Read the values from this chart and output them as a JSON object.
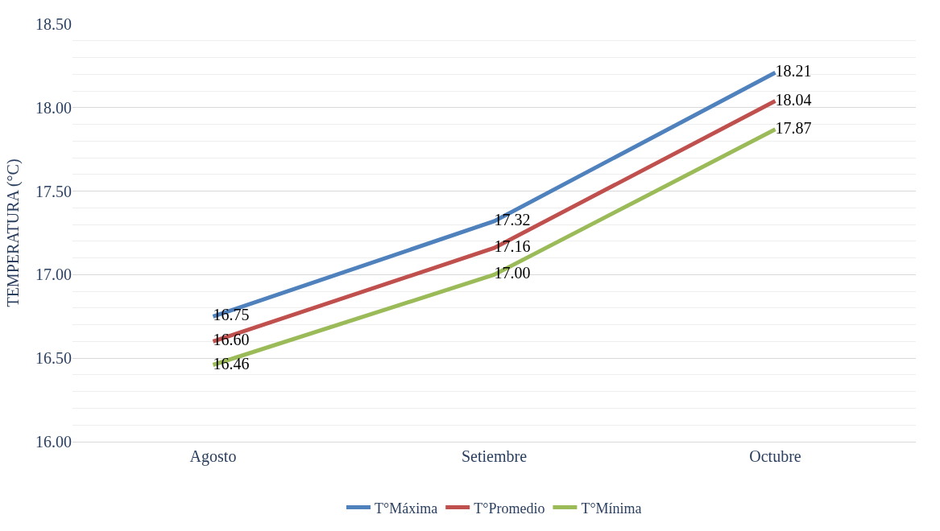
{
  "chart_data": {
    "type": "line",
    "ylabel": "TEMPERATURA (°C)",
    "categories": [
      "Agosto",
      "Setiembre",
      "Octubre"
    ],
    "series": [
      {
        "name": "T°Máxima",
        "color": "#4f81bd",
        "values": [
          16.75,
          17.32,
          18.21
        ],
        "value_labels": [
          "16.75",
          "17.32",
          "18.21"
        ]
      },
      {
        "name": "T°Promedio",
        "color": "#c0504d",
        "values": [
          16.6,
          17.16,
          18.04
        ],
        "value_labels": [
          "16.60",
          "17.16",
          "18.04"
        ]
      },
      {
        "name": "T°Mínima",
        "color": "#9bbb59",
        "values": [
          16.46,
          17.0,
          17.87
        ],
        "value_labels": [
          "16.46",
          "17.00",
          "17.87"
        ]
      }
    ],
    "ylim": [
      16,
      18.5
    ],
    "yticks": [
      {
        "value": 16,
        "label": "16.00"
      },
      {
        "value": 16.5,
        "label": "16.50"
      },
      {
        "value": 17,
        "label": "17.00"
      },
      {
        "value": 17.5,
        "label": "17.50"
      },
      {
        "value": 18,
        "label": "18.00"
      },
      {
        "value": 18.5,
        "label": "18.50"
      }
    ],
    "grid": "y",
    "legend": "bottom",
    "marker": "none",
    "line_style": "solid"
  }
}
